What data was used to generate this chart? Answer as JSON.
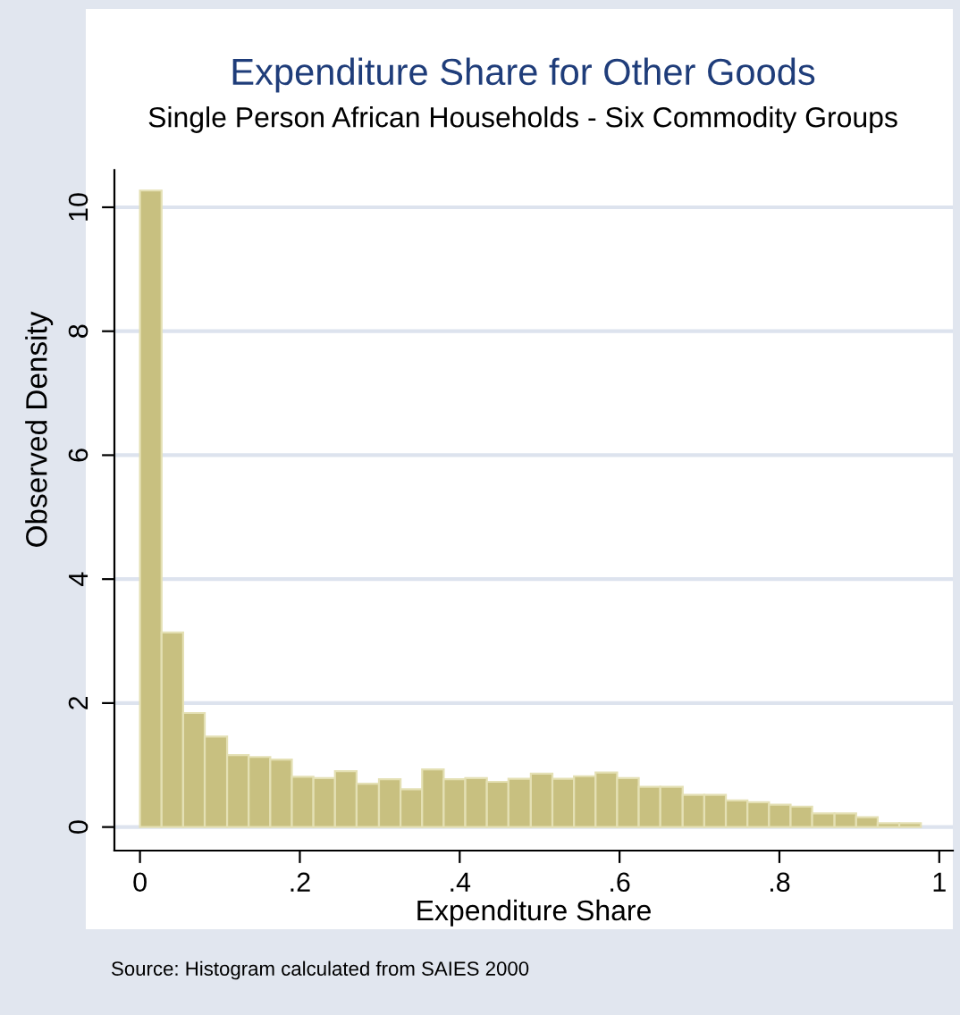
{
  "chart_data": {
    "type": "histogram",
    "title": "Expenditure Share for Other Goods",
    "subtitle": "Single Person African Households - Six Commodity Groups",
    "xlabel": "Expenditure Share",
    "ylabel": "Observed Density",
    "annotations": [
      "Source: Histogram calculated from SAIES 2000"
    ],
    "bins": [
      0,
      0.027,
      0.054,
      0.081,
      0.109,
      0.136,
      0.163,
      0.19,
      0.217,
      0.244,
      0.271,
      0.299,
      0.326,
      0.353,
      0.38,
      0.407,
      0.434,
      0.461,
      0.489,
      0.516,
      0.543,
      0.57,
      0.597,
      0.624,
      0.651,
      0.679,
      0.706,
      0.733,
      0.76,
      0.787,
      0.814,
      0.841,
      0.869,
      0.896,
      0.923,
      0.95,
      0.977
    ],
    "values": [
      10.27,
      3.14,
      1.84,
      1.46,
      1.16,
      1.13,
      1.09,
      0.81,
      0.79,
      0.9,
      0.7,
      0.77,
      0.61,
      0.93,
      0.77,
      0.79,
      0.73,
      0.78,
      0.86,
      0.78,
      0.82,
      0.88,
      0.79,
      0.65,
      0.65,
      0.52,
      0.52,
      0.43,
      0.4,
      0.36,
      0.33,
      0.22,
      0.22,
      0.16,
      0.06,
      0.06
    ],
    "color": "#c8c080",
    "xlim": [
      -0.032,
      1.017
    ],
    "ylim": [
      -0.38,
      13.2
    ],
    "xticks": [
      0,
      {
        "value": 0.2,
        "label": ".2"
      },
      {
        "value": 0.4,
        "label": ".4"
      },
      {
        "value": 0.6,
        "label": ".6"
      },
      {
        "value": 0.8,
        "label": ".8"
      },
      1
    ],
    "yticks": [
      0,
      2,
      4,
      6,
      8,
      10
    ],
    "grid": "y"
  }
}
